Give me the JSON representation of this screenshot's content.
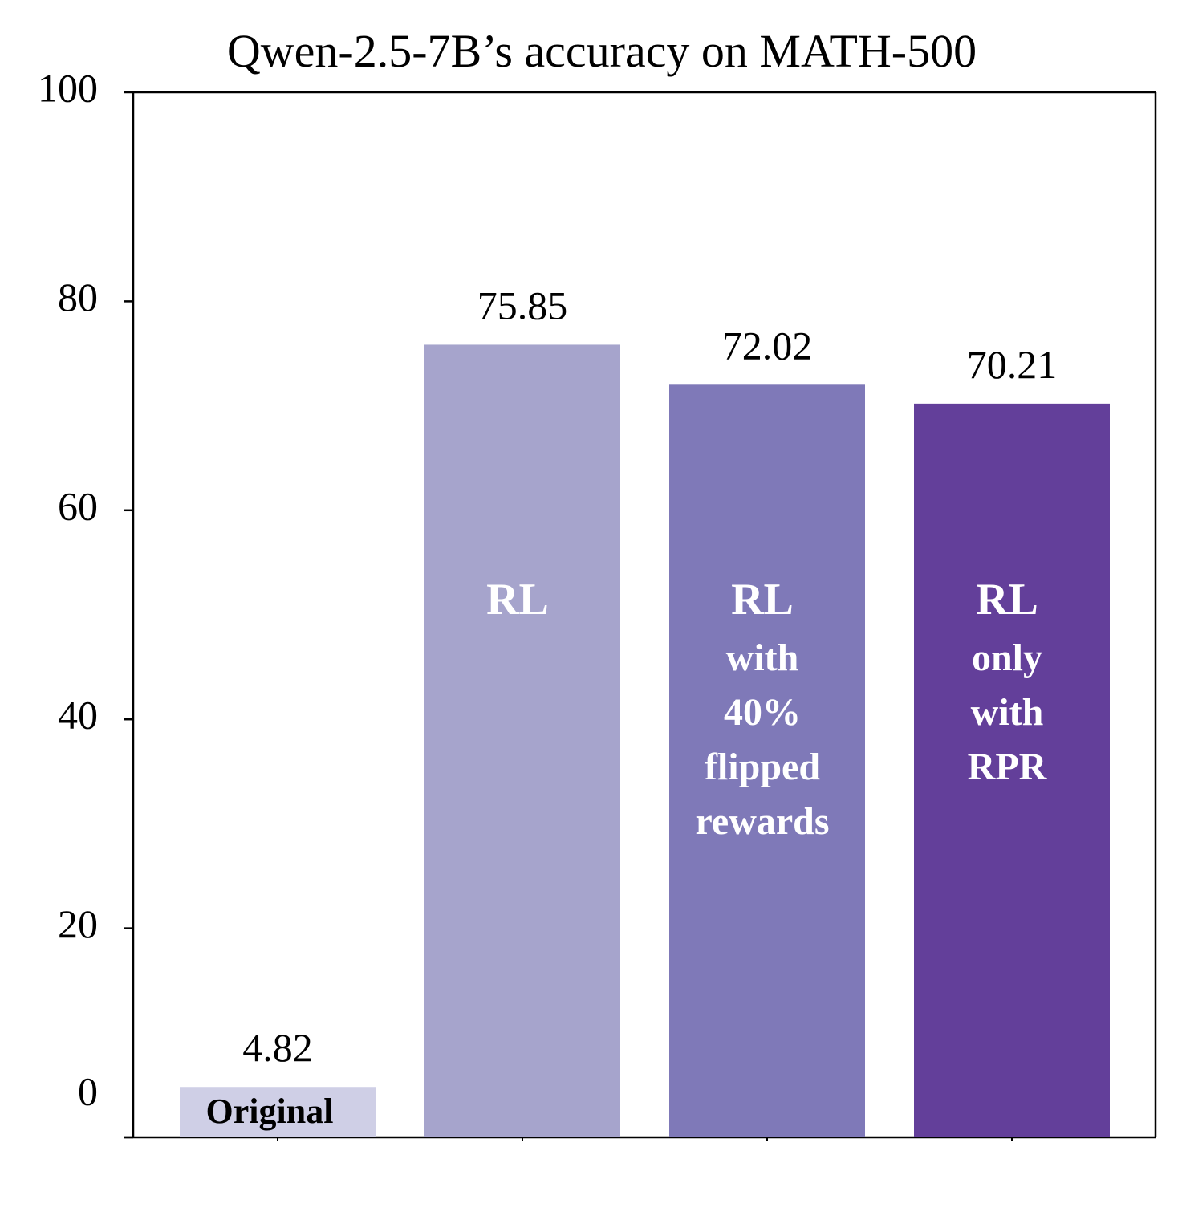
{
  "chart_data": {
    "type": "bar",
    "title": "Qwen-2.5-7B’s accuracy on MATH-500",
    "xlabel": "",
    "ylabel": "",
    "ylim": [
      0,
      100
    ],
    "y_ticks": [
      "0",
      "20",
      "40",
      "60",
      "80",
      "100"
    ],
    "y_tick_values": [
      0,
      20,
      40,
      60,
      80,
      100
    ],
    "grid": false,
    "categories": [
      "Original",
      "RL",
      "RL with 40% flipped rewards",
      "RL only with RPR"
    ],
    "bar_label_lines": [
      [
        "Original"
      ],
      [
        "RL"
      ],
      [
        "RL",
        "with",
        "40%",
        "flipped",
        "rewards"
      ],
      [
        "RL",
        "only",
        "with",
        "RPR"
      ]
    ],
    "values": [
      4.82,
      75.85,
      72.02,
      70.21
    ],
    "value_labels": [
      "4.82",
      "75.85",
      "72.02",
      "70.21"
    ],
    "colors": [
      "#cfcfe6",
      "#a6a4cc",
      "#7f79b8",
      "#633f9a"
    ]
  }
}
